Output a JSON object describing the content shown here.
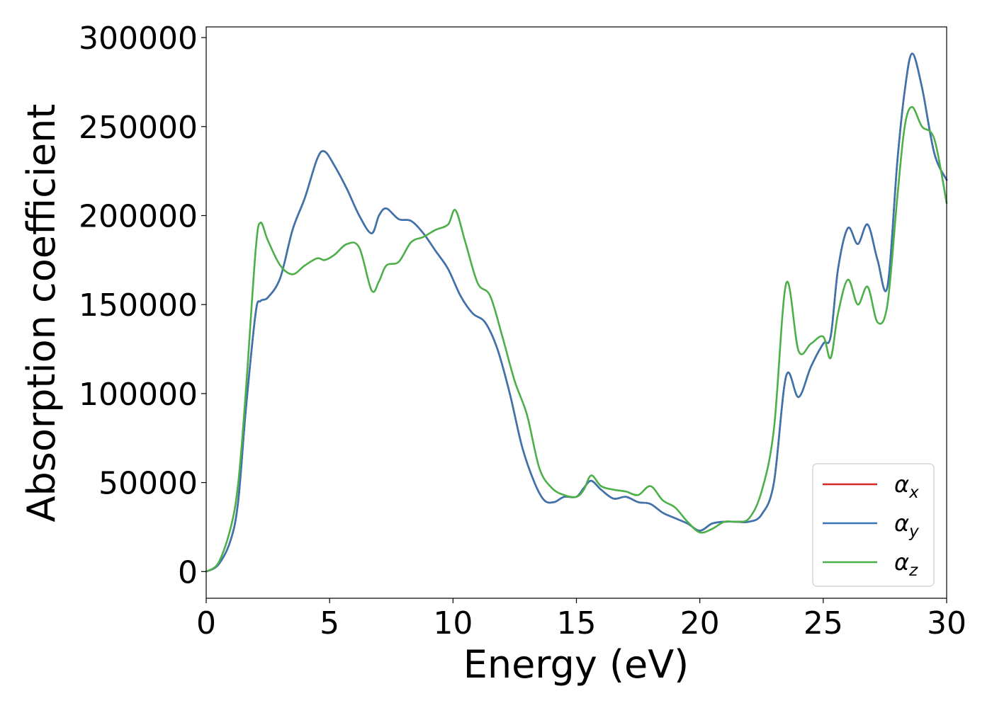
{
  "chart_data": {
    "type": "line",
    "title": "",
    "xlabel": "Energy (eV)",
    "ylabel": "Absorption coefficient",
    "xlim": [
      0,
      30
    ],
    "ylim": [
      -15000,
      306000
    ],
    "xticks": [
      0,
      5,
      10,
      15,
      20,
      25,
      30
    ],
    "yticks": [
      0,
      50000,
      100000,
      150000,
      200000,
      250000,
      300000
    ],
    "xtick_labels": [
      "0",
      "5",
      "10",
      "15",
      "20",
      "25",
      "30"
    ],
    "ytick_labels": [
      "0",
      "50000",
      "100000",
      "150000",
      "200000",
      "250000",
      "300000"
    ],
    "grid": false,
    "legend_position": "lower-right",
    "series": [
      {
        "name": "αx",
        "legend_base": "α",
        "legend_sub": "x",
        "color": "#d62728",
        "x": [
          0,
          0.5,
          1.0,
          1.3,
          1.6,
          2.0,
          2.2,
          2.5,
          3.0,
          3.5,
          4.0,
          4.5,
          4.8,
          5.2,
          5.7,
          6.2,
          6.7,
          7.0,
          7.3,
          7.8,
          8.3,
          8.8,
          9.3,
          9.8,
          10.3,
          10.8,
          11.3,
          11.8,
          12.3,
          12.8,
          13.3,
          13.7,
          14.1,
          14.5,
          15.0,
          15.3,
          15.6,
          16.0,
          16.5,
          17.0,
          17.5,
          18.0,
          18.5,
          19.0,
          19.5,
          20.0,
          20.5,
          21.0,
          21.5,
          22.0,
          22.5,
          23.0,
          23.5,
          24.0,
          24.5,
          25.0,
          25.3,
          25.6,
          26.0,
          26.4,
          26.8,
          27.2,
          27.6,
          28.0,
          28.3,
          28.6,
          29.0,
          29.5,
          30.0
        ],
        "y": [
          0,
          4000,
          18000,
          40000,
          90000,
          145000,
          152000,
          154000,
          165000,
          192000,
          210000,
          232000,
          236000,
          228000,
          215000,
          200000,
          190000,
          200000,
          204000,
          198000,
          197000,
          190000,
          180000,
          170000,
          155000,
          145000,
          140000,
          125000,
          100000,
          70000,
          50000,
          40000,
          39000,
          42000,
          42000,
          47000,
          51000,
          46000,
          41000,
          42000,
          39000,
          38000,
          33000,
          30000,
          27000,
          23000,
          27000,
          28000,
          28000,
          28000,
          32000,
          50000,
          110000,
          98000,
          115000,
          128000,
          132000,
          170000,
          193000,
          184000,
          195000,
          175000,
          160000,
          230000,
          270000,
          291000,
          272000,
          235000,
          220000
        ]
      },
      {
        "name": "αy",
        "legend_base": "α",
        "legend_sub": "y",
        "color": "#3a75b0",
        "x": [
          0,
          0.5,
          1.0,
          1.3,
          1.6,
          2.0,
          2.2,
          2.5,
          3.0,
          3.5,
          4.0,
          4.5,
          4.8,
          5.2,
          5.7,
          6.2,
          6.7,
          7.0,
          7.3,
          7.8,
          8.3,
          8.8,
          9.3,
          9.8,
          10.3,
          10.8,
          11.3,
          11.8,
          12.3,
          12.8,
          13.3,
          13.7,
          14.1,
          14.5,
          15.0,
          15.3,
          15.6,
          16.0,
          16.5,
          17.0,
          17.5,
          18.0,
          18.5,
          19.0,
          19.5,
          20.0,
          20.5,
          21.0,
          21.5,
          22.0,
          22.5,
          23.0,
          23.5,
          24.0,
          24.5,
          25.0,
          25.3,
          25.6,
          26.0,
          26.4,
          26.8,
          27.2,
          27.6,
          28.0,
          28.3,
          28.6,
          29.0,
          29.5,
          30.0
        ],
        "y": [
          0,
          4000,
          18000,
          40000,
          90000,
          145000,
          152000,
          154000,
          165000,
          192000,
          210000,
          232000,
          236000,
          228000,
          215000,
          200000,
          190000,
          200000,
          204000,
          198000,
          197000,
          190000,
          180000,
          170000,
          155000,
          145000,
          140000,
          125000,
          100000,
          70000,
          50000,
          40000,
          39000,
          42000,
          42000,
          47000,
          51000,
          46000,
          41000,
          42000,
          39000,
          38000,
          33000,
          30000,
          27000,
          23000,
          27000,
          28000,
          28000,
          28000,
          32000,
          50000,
          110000,
          98000,
          115000,
          128000,
          132000,
          170000,
          193000,
          184000,
          195000,
          175000,
          160000,
          230000,
          270000,
          291000,
          272000,
          235000,
          220000
        ]
      },
      {
        "name": "αz",
        "legend_base": "α",
        "legend_sub": "z",
        "color": "#4daf4a",
        "x": [
          0,
          0.5,
          1.0,
          1.3,
          1.6,
          2.0,
          2.2,
          2.5,
          3.0,
          3.5,
          4.0,
          4.5,
          4.8,
          5.2,
          5.7,
          6.2,
          6.7,
          7.0,
          7.3,
          7.8,
          8.3,
          8.8,
          9.3,
          9.8,
          10.1,
          10.5,
          11.0,
          11.5,
          12.0,
          12.5,
          13.0,
          13.5,
          14.0,
          14.5,
          15.0,
          15.3,
          15.6,
          16.0,
          16.5,
          17.0,
          17.5,
          18.0,
          18.5,
          19.0,
          19.5,
          20.0,
          20.5,
          21.0,
          21.5,
          22.0,
          22.5,
          23.0,
          23.5,
          24.0,
          24.5,
          25.0,
          25.3,
          25.6,
          26.0,
          26.4,
          26.8,
          27.2,
          27.6,
          28.0,
          28.3,
          28.6,
          29.0,
          29.5,
          30.0
        ],
        "y": [
          0,
          5000,
          25000,
          50000,
          100000,
          180000,
          196000,
          186000,
          172000,
          167000,
          172000,
          176000,
          175000,
          178000,
          184000,
          182000,
          158000,
          163000,
          172000,
          174000,
          185000,
          188000,
          192000,
          195000,
          203000,
          185000,
          162000,
          155000,
          132000,
          107000,
          88000,
          58000,
          47000,
          43000,
          42000,
          46000,
          54000,
          48000,
          46000,
          45000,
          43000,
          48000,
          40000,
          36000,
          28000,
          22000,
          24000,
          28000,
          28000,
          30000,
          45000,
          80000,
          162000,
          124000,
          128000,
          132000,
          120000,
          145000,
          164000,
          150000,
          160000,
          140000,
          150000,
          210000,
          250000,
          261000,
          250000,
          243000,
          207000
        ]
      }
    ]
  }
}
